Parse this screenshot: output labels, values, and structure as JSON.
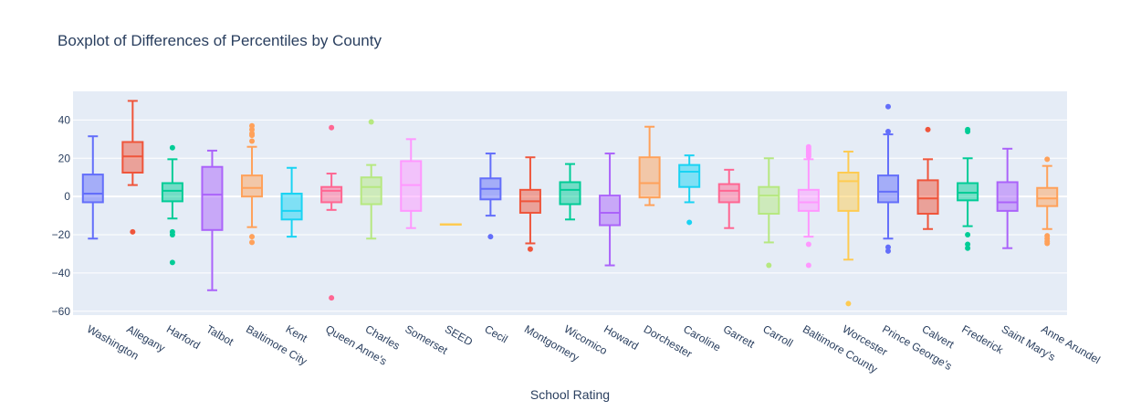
{
  "chart_data": {
    "type": "box",
    "title": "Boxplot of Differences of Percentiles by County",
    "xlabel": "School Rating",
    "ylabel": "",
    "ylim": [
      -62,
      55
    ],
    "yticks": [
      -60,
      -40,
      -20,
      0,
      20,
      40
    ],
    "ytick_labels": [
      "−60",
      "−40",
      "−20",
      "0",
      "20",
      "40"
    ],
    "grid": true,
    "legend": "none",
    "series": [
      {
        "name": "Washington",
        "color": "#636efa",
        "q1": -3,
        "median": 1.5,
        "q3": 11.5,
        "lower": -22,
        "upper": 31.5,
        "outliers": []
      },
      {
        "name": "Allegany",
        "color": "#EF553B",
        "q1": 12.5,
        "median": 21,
        "q3": 28.5,
        "lower": 6,
        "upper": 50,
        "outliers": [
          -18.5
        ]
      },
      {
        "name": "Harford",
        "color": "#00cc96",
        "q1": -2.5,
        "median": 3,
        "q3": 7,
        "lower": -11.5,
        "upper": 19.5,
        "outliers": [
          25.5,
          -18.5,
          -20,
          -34.5
        ]
      },
      {
        "name": "Talbot",
        "color": "#ab63fa",
        "q1": -17.5,
        "median": 1,
        "q3": 15.5,
        "lower": -49,
        "upper": 24,
        "outliers": []
      },
      {
        "name": "Baltimore City",
        "color": "#FFA15A",
        "q1": 0,
        "median": 4.5,
        "q3": 11,
        "lower": -16,
        "upper": 26,
        "outliers": [
          29,
          32,
          33,
          35,
          37,
          -21,
          -24
        ]
      },
      {
        "name": "Kent",
        "color": "#19d3f3",
        "q1": -12,
        "median": -7.5,
        "q3": 1.5,
        "lower": -21,
        "upper": 15,
        "outliers": []
      },
      {
        "name": "Queen Anne's",
        "color": "#FF6692",
        "q1": -3,
        "median": 3,
        "q3": 5,
        "lower": -7,
        "upper": 12,
        "outliers": [
          36,
          -53
        ]
      },
      {
        "name": "Charles",
        "color": "#B6E880",
        "q1": -4,
        "median": 5,
        "q3": 10,
        "lower": -22,
        "upper": 16.5,
        "outliers": [
          39
        ]
      },
      {
        "name": "Somerset",
        "color": "#FF97FF",
        "q1": -7.5,
        "median": 6,
        "q3": 18.5,
        "lower": -16.5,
        "upper": 30,
        "outliers": []
      },
      {
        "name": "SEED",
        "color": "#FECB52",
        "q1": -14.5,
        "median": -14.5,
        "q3": -14.5,
        "lower": -14.5,
        "upper": -14.5,
        "outliers": []
      },
      {
        "name": "Cecil",
        "color": "#636efa",
        "q1": -1.5,
        "median": 4,
        "q3": 9.5,
        "lower": -10,
        "upper": 22.5,
        "outliers": [
          -21
        ]
      },
      {
        "name": "Montgomery",
        "color": "#EF553B",
        "q1": -8.5,
        "median": -2.5,
        "q3": 3.5,
        "lower": -24.5,
        "upper": 20.5,
        "outliers": [
          -27.5
        ]
      },
      {
        "name": "Wicomico",
        "color": "#00cc96",
        "q1": -4,
        "median": 3.5,
        "q3": 7.5,
        "lower": -12,
        "upper": 17,
        "outliers": []
      },
      {
        "name": "Howard",
        "color": "#ab63fa",
        "q1": -15,
        "median": -8.5,
        "q3": 0.5,
        "lower": -36,
        "upper": 22.5,
        "outliers": []
      },
      {
        "name": "Dorchester",
        "color": "#FFA15A",
        "q1": -0.5,
        "median": 7,
        "q3": 20.5,
        "lower": -4.5,
        "upper": 36.5,
        "outliers": []
      },
      {
        "name": "Caroline",
        "color": "#19d3f3",
        "q1": 5,
        "median": 13,
        "q3": 16.5,
        "lower": -3,
        "upper": 21.5,
        "outliers": [
          -13.5
        ]
      },
      {
        "name": "Garrett",
        "color": "#FF6692",
        "q1": -3,
        "median": 3,
        "q3": 6.5,
        "lower": -16.5,
        "upper": 14,
        "outliers": []
      },
      {
        "name": "Carroll",
        "color": "#B6E880",
        "q1": -9,
        "median": 0.5,
        "q3": 5,
        "lower": -24,
        "upper": 20,
        "outliers": [
          -36
        ]
      },
      {
        "name": "Baltimore County",
        "color": "#FF97FF",
        "q1": -7.5,
        "median": -3,
        "q3": 3.5,
        "lower": -21,
        "upper": 19.5,
        "outliers": [
          21,
          22,
          23,
          24,
          25,
          26,
          -25,
          -36
        ]
      },
      {
        "name": "Worcester",
        "color": "#FECB52",
        "q1": -7.5,
        "median": 8,
        "q3": 12.5,
        "lower": -33,
        "upper": 23.5,
        "outliers": [
          -56
        ]
      },
      {
        "name": "Prince George's",
        "color": "#636efa",
        "q1": -3,
        "median": 2.5,
        "q3": 11,
        "lower": -22,
        "upper": 32.5,
        "outliers": [
          47,
          34,
          -26.5,
          -28.5
        ]
      },
      {
        "name": "Calvert",
        "color": "#EF553B",
        "q1": -9,
        "median": -1,
        "q3": 8.5,
        "lower": -17,
        "upper": 19.5,
        "outliers": [
          35
        ]
      },
      {
        "name": "Frederick",
        "color": "#00cc96",
        "q1": -2,
        "median": 2,
        "q3": 7,
        "lower": -15.5,
        "upper": 20,
        "outliers": [
          34,
          35,
          -20,
          -25,
          -27
        ]
      },
      {
        "name": "Saint Mary's",
        "color": "#ab63fa",
        "q1": -7.5,
        "median": -3,
        "q3": 7.5,
        "lower": -27,
        "upper": 25,
        "outliers": []
      },
      {
        "name": "Anne Arundel",
        "color": "#FFA15A",
        "q1": -5,
        "median": -1,
        "q3": 4.5,
        "lower": -17,
        "upper": 16,
        "outliers": [
          19.5,
          -20.5,
          -22,
          -23.5,
          -24.5
        ]
      }
    ]
  }
}
